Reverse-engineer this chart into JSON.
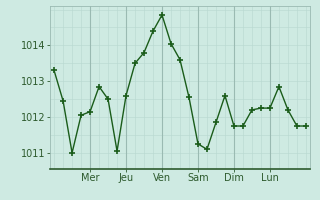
{
  "x": [
    0,
    1,
    2,
    3,
    4,
    5,
    6,
    7,
    8,
    9,
    10,
    11,
    12,
    13,
    14,
    15,
    16,
    17,
    18,
    19,
    20,
    21,
    22,
    23,
    24,
    25,
    26,
    27,
    28
  ],
  "y": [
    1013.3,
    1012.45,
    1011.0,
    1012.05,
    1012.15,
    1012.85,
    1012.5,
    1011.05,
    1012.6,
    1013.5,
    1013.8,
    1014.4,
    1014.85,
    1014.05,
    1013.6,
    1012.55,
    1011.25,
    1011.1,
    1011.85,
    1012.6,
    1011.75,
    1011.75,
    1012.2,
    1012.25,
    1012.25,
    1012.85,
    1012.2,
    1011.75,
    1011.75
  ],
  "tick_positions": [
    4,
    8,
    12,
    16,
    20,
    24
  ],
  "tick_labels": [
    "Mer",
    "Jeu",
    "Ven",
    "Sam",
    "Dim",
    "Lun"
  ],
  "vline_positions": [
    4,
    8,
    12,
    16,
    20,
    24
  ],
  "xlim": [
    -0.5,
    28.5
  ],
  "ylim": [
    1010.55,
    1015.1
  ],
  "yticks": [
    1011,
    1012,
    1013,
    1014
  ],
  "line_color": "#1a5c1a",
  "marker_color": "#1a5c1a",
  "bg_color": "#ceeae2",
  "grid_minor_color": "#b8d8d0",
  "grid_major_color": "#9abab2",
  "vline_color": "#7a9a92",
  "spine_color": "#2d5a2d",
  "tick_label_color": "#2d5a2d",
  "tick_label_fontsize": 7
}
